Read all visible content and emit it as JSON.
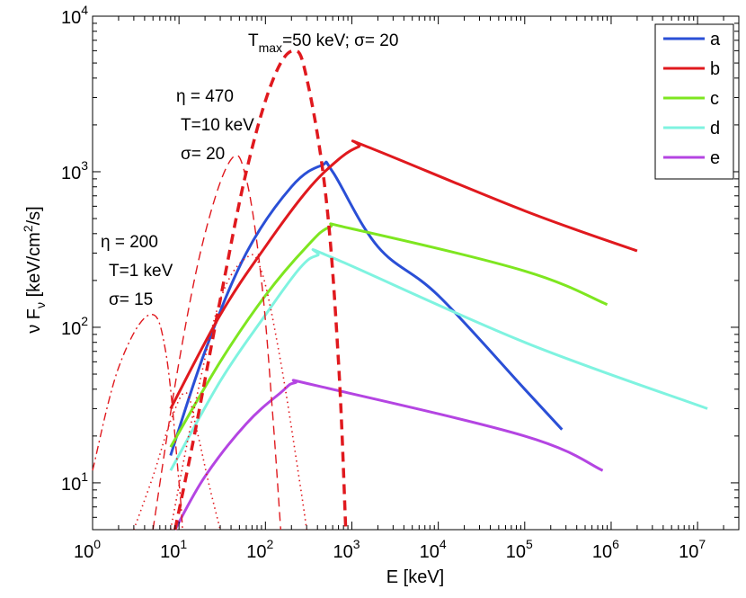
{
  "chart_data": {
    "type": "line",
    "xlabel": "E [keV]",
    "ylabel_parts": {
      "nu": "ν",
      "F": "F",
      "sub_nu": "ν",
      "unit": "[keV/cm",
      "sup": "2",
      "unit_end": "/s]"
    },
    "x_scale": "log",
    "y_scale": "log",
    "xlim": [
      1,
      30000000
    ],
    "ylim": [
      5,
      10000
    ],
    "x_ticks": [
      {
        "value": 1,
        "base": "10",
        "exp": "0"
      },
      {
        "value": 10,
        "base": "10",
        "exp": "1"
      },
      {
        "value": 100,
        "base": "10",
        "exp": "2"
      },
      {
        "value": 1000,
        "base": "10",
        "exp": "3"
      },
      {
        "value": 10000,
        "base": "10",
        "exp": "4"
      },
      {
        "value": 100000,
        "base": "10",
        "exp": "5"
      },
      {
        "value": 1000000,
        "base": "10",
        "exp": "6"
      },
      {
        "value": 10000000,
        "base": "10",
        "exp": "7"
      }
    ],
    "y_ticks": [
      {
        "value": 10,
        "base": "10",
        "exp": "1"
      },
      {
        "value": 100,
        "base": "10",
        "exp": "2"
      },
      {
        "value": 1000,
        "base": "10",
        "exp": "3"
      },
      {
        "value": 10000,
        "base": "10",
        "exp": "4"
      }
    ],
    "legend_position": "top-right",
    "series": [
      {
        "name": "a",
        "color": "#2a4fd6",
        "points": [
          [
            8,
            15
          ],
          [
            20,
            70
          ],
          [
            60,
            300
          ],
          [
            200,
            800
          ],
          [
            450,
            1100
          ],
          [
            600,
            1000
          ],
          [
            2000,
            330
          ],
          [
            10000,
            160
          ],
          [
            100000,
            40
          ],
          [
            270000,
            22
          ]
        ]
      },
      {
        "name": "b",
        "color": "#e0191e",
        "points": [
          [
            8,
            30
          ],
          [
            30,
            120
          ],
          [
            100,
            330
          ],
          [
            300,
            750
          ],
          [
            700,
            1200
          ],
          [
            1200,
            1450
          ],
          [
            1500,
            1450
          ],
          [
            100000,
            560
          ],
          [
            2000000,
            310
          ]
        ]
      },
      {
        "name": "c",
        "color": "#7ee620",
        "points": [
          [
            8,
            17
          ],
          [
            30,
            60
          ],
          [
            100,
            160
          ],
          [
            300,
            330
          ],
          [
            550,
            440
          ],
          [
            1000,
            430
          ],
          [
            100000,
            230
          ],
          [
            900000,
            140
          ]
        ]
      },
      {
        "name": "d",
        "color": "#7ff3e0",
        "points": [
          [
            8,
            12
          ],
          [
            30,
            45
          ],
          [
            100,
            120
          ],
          [
            250,
            240
          ],
          [
            400,
            290
          ],
          [
            600,
            280
          ],
          [
            100000,
            80
          ],
          [
            13000000,
            30
          ]
        ]
      },
      {
        "name": "e",
        "color": "#b445e2",
        "points": [
          [
            9,
            5
          ],
          [
            20,
            11
          ],
          [
            60,
            24
          ],
          [
            150,
            38
          ],
          [
            220,
            44
          ],
          [
            400,
            42
          ],
          [
            100000,
            20
          ],
          [
            800000,
            12
          ]
        ]
      },
      {
        "name": "",
        "style": "thick-dashed",
        "color": "#e0191e",
        "annotation": "T_max=50 keV; σ= 20",
        "points": [
          [
            9,
            5
          ],
          [
            15,
            20
          ],
          [
            30,
            150
          ],
          [
            60,
            1000
          ],
          [
            120,
            3800
          ],
          [
            210,
            6000
          ],
          [
            300,
            4000
          ],
          [
            500,
            700
          ],
          [
            700,
            60
          ],
          [
            850,
            5
          ]
        ]
      },
      {
        "name": "",
        "style": "dashed",
        "color": "#e0191e",
        "annotation": "η = 470, T=10 keV, σ= 20",
        "points": [
          [
            5,
            5
          ],
          [
            10,
            60
          ],
          [
            20,
            400
          ],
          [
            40,
            1200
          ],
          [
            60,
            900
          ],
          [
            90,
            200
          ],
          [
            120,
            30
          ],
          [
            150,
            5
          ]
        ]
      },
      {
        "name": "",
        "style": "dash-dot",
        "color": "#e0191e",
        "annotation": "η = 200, T=1 keV, σ= 15",
        "points": [
          [
            1,
            12
          ],
          [
            2,
            55
          ],
          [
            4.5,
            120
          ],
          [
            7,
            70
          ],
          [
            10,
            10
          ],
          [
            11,
            5
          ]
        ]
      },
      {
        "name": "",
        "style": "dotted",
        "color": "#e0191e",
        "points": [
          [
            3,
            5
          ],
          [
            5,
            11
          ],
          [
            8,
            25
          ],
          [
            12,
            38
          ],
          [
            16,
            22
          ],
          [
            22,
            10
          ],
          [
            30,
            5
          ]
        ]
      },
      {
        "name": "",
        "style": "dotted",
        "color": "#e0191e",
        "points": [
          [
            8,
            5
          ],
          [
            15,
            30
          ],
          [
            30,
            150
          ],
          [
            60,
            280
          ],
          [
            90,
            230
          ],
          [
            150,
            60
          ],
          [
            250,
            10
          ],
          [
            300,
            5
          ]
        ]
      }
    ],
    "annotations": {
      "tmax": {
        "T": "T",
        "sub": "max",
        "rest": "=50 keV; σ= 20"
      },
      "group470": {
        "line1": "η = 470",
        "line2": "T=10 keV",
        "line3": "σ= 20"
      },
      "group200": {
        "line1": "η = 200",
        "line2": "T=1 keV",
        "line3": "σ= 15"
      }
    }
  }
}
